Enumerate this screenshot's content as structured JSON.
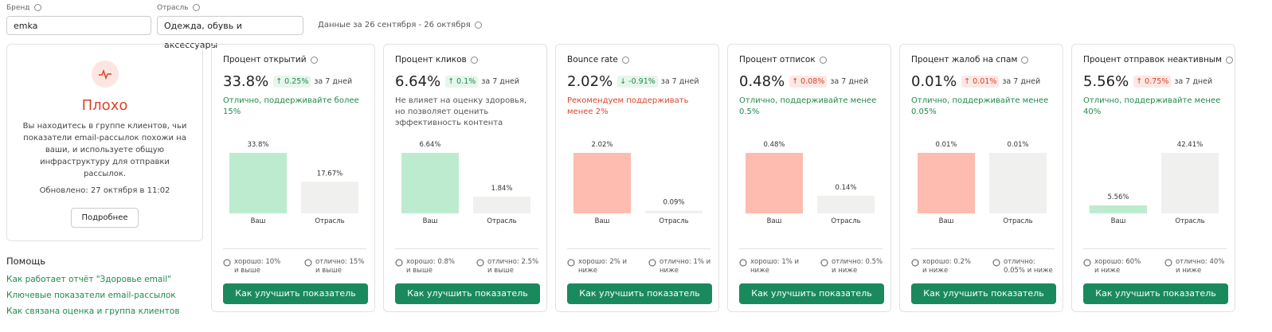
{
  "filters": {
    "brand": {
      "label": "Бренд",
      "value": "emka"
    },
    "industry": {
      "label": "Отрасль",
      "value": "Одежда, обувь и аксессуары"
    },
    "period": "Данные за 26 сентября - 26 октября"
  },
  "status": {
    "title": "Плохо",
    "description": "Вы находитесь в группе клиентов, чьи показатели email-рассылок похожи на ваши, и используете общую инфраструктуру для отправки рассылок.",
    "updated": "Обновлено: 27 октября в 11:02",
    "button": "Подробнее"
  },
  "help": {
    "title": "Помощь",
    "links": [
      "Как работает отчёт \"Здоровье email\"",
      "Ключевые показатели email-рассылок",
      "Как связана оценка и группа клиентов"
    ]
  },
  "metrics": [
    {
      "title": "Процент открытий",
      "value": "33.8%",
      "change": "↑ 0.25%",
      "change_tone": "good",
      "change_period": "за 7 дней",
      "note": "Отлично, поддерживайте более 15%",
      "note_tone": "good",
      "good": "хорошо: 10% и выше",
      "excellent": "отлично: 15% и выше",
      "button": "Как улучшить показатель",
      "chart_data": {
        "type": "bar",
        "categories": [
          "Ваш",
          "Отрасль"
        ],
        "values": [
          33.8,
          17.67
        ],
        "value_labels": [
          "33.8%",
          "17.67%"
        ],
        "colors": [
          "#bdebcf",
          "#f0f0ee"
        ]
      }
    },
    {
      "title": "Процент кликов",
      "value": "6.64%",
      "change": "↑ 0.1%",
      "change_tone": "good",
      "change_period": "за 7 дней",
      "note": "Не влияет на оценку здоровья, но позволяет оценить эффективность контента",
      "note_tone": "neutral",
      "good": "хорошо: 0.8% и выше",
      "excellent": "отлично: 2.5% и выше",
      "button": "Как улучшить показатель",
      "chart_data": {
        "type": "bar",
        "categories": [
          "Ваш",
          "Отрасль"
        ],
        "values": [
          6.64,
          1.84
        ],
        "value_labels": [
          "6.64%",
          "1.84%"
        ],
        "colors": [
          "#bdebcf",
          "#f0f0ee"
        ]
      }
    },
    {
      "title": "Bounce rate",
      "value": "2.02%",
      "change": "↓ -0.91%",
      "change_tone": "good",
      "change_period": "за 7 дней",
      "note": "Рекомендуем поддерживать менее 2%",
      "note_tone": "bad",
      "good": "хорошо: 2% и ниже",
      "excellent": "отлично: 1% и ниже",
      "button": "Как улучшить показатель",
      "chart_data": {
        "type": "bar",
        "categories": [
          "Ваш",
          "Отрасль"
        ],
        "values": [
          2.02,
          0.09
        ],
        "value_labels": [
          "2.02%",
          "0.09%"
        ],
        "colors": [
          "#fdbcaf",
          "#f0f0ee"
        ]
      }
    },
    {
      "title": "Процент отписок",
      "value": "0.48%",
      "change": "↑ 0.08%",
      "change_tone": "bad",
      "change_period": "за 7 дней",
      "note": "Отлично, поддерживайте менее 0.5%",
      "note_tone": "good",
      "good": "хорошо: 1% и ниже",
      "excellent": "отлично: 0.5% и ниже",
      "button": "Как улучшить показатель",
      "chart_data": {
        "type": "bar",
        "categories": [
          "Ваш",
          "Отрасль"
        ],
        "values": [
          0.48,
          0.14
        ],
        "value_labels": [
          "0.48%",
          "0.14%"
        ],
        "colors": [
          "#fdbcaf",
          "#f0f0ee"
        ]
      }
    },
    {
      "title": "Процент жалоб на спам",
      "value": "0.01%",
      "change": "↑ 0.01%",
      "change_tone": "bad",
      "change_period": "за 7 дней",
      "note": "Отлично, поддерживайте менее 0.05%",
      "note_tone": "good",
      "good": "хорошо: 0.2% и ниже",
      "excellent": "отлично: 0.05% и ниже",
      "button": "Как улучшить показатель",
      "chart_data": {
        "type": "bar",
        "categories": [
          "Ваш",
          "Отрасль"
        ],
        "values": [
          0.01,
          0.01
        ],
        "value_labels": [
          "0.01%",
          "0.01%"
        ],
        "colors": [
          "#fdbcaf",
          "#f0f0ee"
        ]
      }
    },
    {
      "title": "Процент отправок неактивным",
      "value": "5.56%",
      "change": "↑ 0.75%",
      "change_tone": "bad",
      "change_period": "за 7 дней",
      "note": "Отлично, поддерживайте менее 40%",
      "note_tone": "good",
      "good": "хорошо: 60% и ниже",
      "excellent": "отлично: 40% и ниже",
      "button": "Как улучшить показатель",
      "chart_data": {
        "type": "bar",
        "categories": [
          "Ваш",
          "Отрасль"
        ],
        "values": [
          5.56,
          42.41
        ],
        "value_labels": [
          "5.56%",
          "42.41%"
        ],
        "colors": [
          "#bdebcf",
          "#f0f0ee"
        ]
      }
    }
  ]
}
